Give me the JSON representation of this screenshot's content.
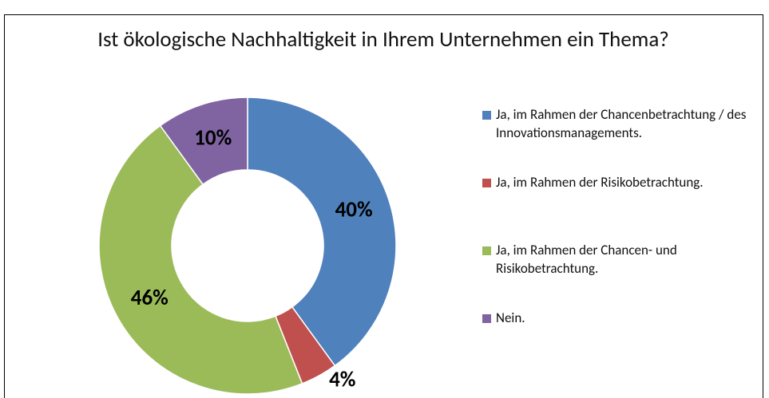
{
  "chart_data": {
    "type": "doughnut",
    "title": "Ist ökologische Nachhaltigkeit in Ihrem Unternehmen ein Thema?",
    "categories": [
      "Ja, im Rahmen der Chancenbetrachtung / des Innovationsmanagements.",
      "Ja, im Rahmen der Risikobetrachtung.",
      "Ja, im Rahmen der Chancen- und Risikobetrachtung.",
      "Nein."
    ],
    "values": [
      40,
      4,
      46,
      10
    ],
    "value_labels": [
      "40%",
      "4%",
      "46%",
      "10%"
    ],
    "colors": [
      "#4f81bd",
      "#c0504d",
      "#9bbb59",
      "#8064a2"
    ],
    "legend": "right"
  }
}
